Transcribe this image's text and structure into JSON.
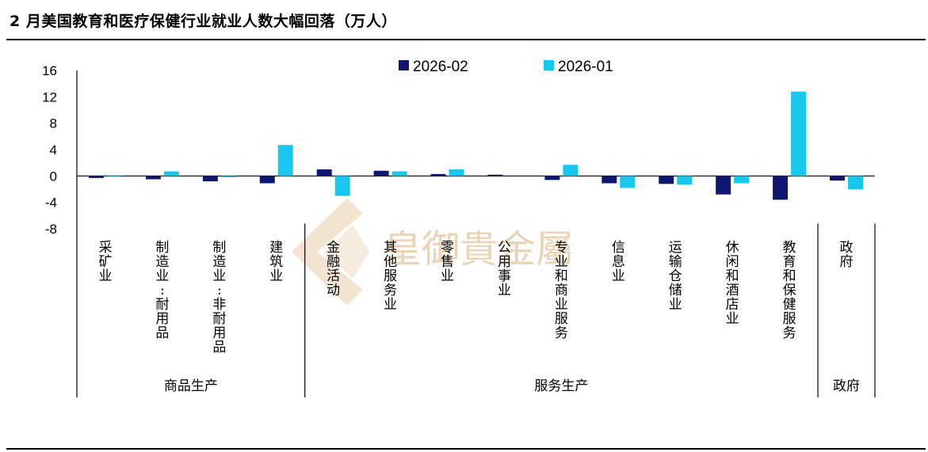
{
  "title": "2 月美国教育和医疗保健行业就业人数大幅回落（万人）",
  "watermark": "皇御貴金屬",
  "colors": {
    "s1": "#0f1771",
    "s2": "#18c7ee",
    "watermark": "#ecd3b4"
  },
  "chart_data": {
    "type": "bar",
    "title": "2 月美国教育和医疗保健行业就业人数大幅回落（万人）",
    "ylim": [
      -8,
      16
    ],
    "yticks": [
      16,
      12,
      8,
      4,
      0,
      -4,
      -8
    ],
    "grid": false,
    "legend_position": "top",
    "categories": [
      "采矿业",
      "制造业:耐用品",
      "制造业:非耐用品",
      "建筑业",
      "金融活动",
      "其他服务业",
      "零售业",
      "公用事业",
      "专业和商业服务",
      "信息业",
      "运输仓储业",
      "休闲和酒店业",
      "教育和保健服务",
      "政府"
    ],
    "series": [
      {
        "name": "2026-02",
        "color": "#0f1771",
        "values": [
          -0.3,
          -0.5,
          -0.8,
          -1.1,
          1.0,
          0.8,
          0.3,
          0.2,
          -0.6,
          -1.1,
          -1.2,
          -2.8,
          -3.6,
          -0.7
        ]
      },
      {
        "name": "2026-01",
        "color": "#18c7ee",
        "values": [
          -0.1,
          0.7,
          -0.2,
          4.7,
          -3.0,
          0.7,
          1.0,
          0.0,
          1.7,
          -1.8,
          -1.3,
          -1.1,
          12.8,
          -2.0
        ]
      }
    ],
    "groups": [
      {
        "label": "商品生产",
        "count": 4
      },
      {
        "label": "服务生产",
        "count": 9
      },
      {
        "label": "政府",
        "count": 1
      }
    ]
  }
}
